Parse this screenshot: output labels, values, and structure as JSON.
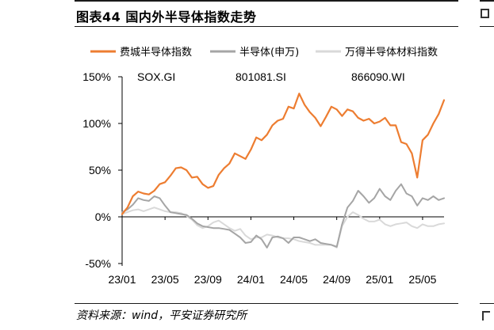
{
  "figure": {
    "title": "图表44   国内外半导体指数走势",
    "source": "资料来源：wind，平安证券研究所"
  },
  "chart_data": {
    "type": "line",
    "y_unit": "%",
    "ylim": [
      -50,
      150
    ],
    "yticks": [
      "150%",
      "100%",
      "50%",
      "0%",
      "-50%"
    ],
    "ytick_values": [
      150,
      100,
      50,
      0,
      -50
    ],
    "x_range": [
      "2023-01",
      "2025-07"
    ],
    "xticks": [
      "23/01",
      "23/05",
      "23/09",
      "24/01",
      "24/05",
      "24/09",
      "25/01",
      "25/05"
    ],
    "xtick_months": [
      0,
      4,
      8,
      12,
      16,
      20,
      24,
      28
    ],
    "grid": false,
    "legend_position": "top",
    "annotations": [
      "SOX.GI",
      "801081.SI",
      "866090.WI"
    ],
    "series": [
      {
        "name": "费城半导体指数",
        "color": "#ED7D31",
        "x": [
          0,
          0.5,
          1,
          1.5,
          2,
          2.5,
          3,
          3.5,
          4,
          4.5,
          5,
          5.5,
          6,
          6.5,
          7,
          7.5,
          8,
          8.5,
          9,
          9.5,
          10,
          10.5,
          11,
          11.5,
          12,
          12.5,
          13,
          13.5,
          14,
          14.5,
          15,
          15.5,
          16,
          16.5,
          17,
          17.5,
          18,
          18.5,
          19,
          19.5,
          20,
          20.5,
          21,
          21.5,
          22,
          22.5,
          23,
          23.5,
          24,
          24.5,
          25,
          25.5,
          26,
          26.5,
          27,
          27.5,
          28,
          28.5,
          29,
          29.5,
          30
        ],
        "values": [
          3,
          10,
          22,
          27,
          25,
          24,
          28,
          35,
          37,
          44,
          52,
          53,
          50,
          42,
          43,
          35,
          31,
          33,
          45,
          52,
          57,
          68,
          65,
          62,
          72,
          85,
          82,
          88,
          98,
          103,
          105,
          118,
          116,
          132,
          120,
          112,
          106,
          97,
          107,
          118,
          115,
          108,
          115,
          113,
          106,
          103,
          105,
          100,
          102,
          106,
          98,
          98,
          80,
          78,
          68,
          42,
          82,
          88,
          100,
          110,
          125
        ]
      },
      {
        "name": "半导体(申万)",
        "color": "#A5A5A5",
        "x": [
          0,
          0.5,
          1,
          1.5,
          2,
          2.5,
          3,
          3.5,
          4,
          4.5,
          5,
          5.5,
          6,
          6.5,
          7,
          7.5,
          8,
          8.5,
          9,
          9.5,
          10,
          10.5,
          11,
          11.5,
          12,
          12.5,
          13,
          13.5,
          14,
          14.5,
          15,
          15.5,
          16,
          16.5,
          17,
          17.5,
          18,
          18.5,
          19,
          19.5,
          20,
          20.5,
          21,
          21.5,
          22,
          22.5,
          23,
          23.5,
          24,
          24.5,
          25,
          25.5,
          26,
          26.5,
          27,
          27.5,
          28,
          28.5,
          29,
          29.5,
          30
        ],
        "values": [
          5,
          8,
          13,
          20,
          18,
          17,
          22,
          20,
          12,
          5,
          4,
          3,
          2,
          -2,
          -7,
          -10,
          -11,
          -12,
          -12,
          -13,
          -14,
          -18,
          -22,
          -28,
          -27,
          -20,
          -24,
          -33,
          -22,
          -21,
          -23,
          -28,
          -22,
          -22,
          -24,
          -26,
          -24,
          -28,
          -29,
          -30,
          -32,
          -8,
          10,
          17,
          28,
          22,
          15,
          20,
          30,
          22,
          18,
          28,
          35,
          25,
          22,
          12,
          20,
          18,
          22,
          18,
          20
        ]
      },
      {
        "name": "万得半导体材料指数",
        "color": "#D9D9D9",
        "x": [
          0,
          0.5,
          1,
          1.5,
          2,
          2.5,
          3,
          3.5,
          4,
          4.5,
          5,
          5.5,
          6,
          6.5,
          7,
          7.5,
          8,
          8.5,
          9,
          9.5,
          10,
          10.5,
          11,
          11.5,
          12,
          12.5,
          13,
          13.5,
          14,
          14.5,
          15,
          15.5,
          16,
          16.5,
          17,
          17.5,
          18,
          18.5,
          19,
          19.5,
          20,
          20.5,
          21,
          21.5,
          22,
          22.5,
          23,
          23.5,
          24,
          24.5,
          25,
          25.5,
          26,
          26.5,
          27,
          27.5,
          28,
          28.5,
          29,
          29.5,
          30
        ],
        "values": [
          3,
          5,
          7,
          8,
          6,
          8,
          10,
          8,
          6,
          5,
          5,
          4,
          1,
          -3,
          -9,
          -12,
          -10,
          -6,
          -4,
          -8,
          -12,
          -15,
          -13,
          -20,
          -24,
          -22,
          -22,
          -19,
          -20,
          -22,
          -23,
          -23,
          -24,
          -26,
          -27,
          -28,
          -30,
          -30,
          -30,
          -30,
          -33,
          -10,
          0,
          5,
          2,
          -2,
          -5,
          -5,
          -3,
          -8,
          -10,
          -8,
          -7,
          -6,
          -10,
          -12,
          -8,
          -10,
          -10,
          -8,
          -7
        ]
      }
    ]
  }
}
